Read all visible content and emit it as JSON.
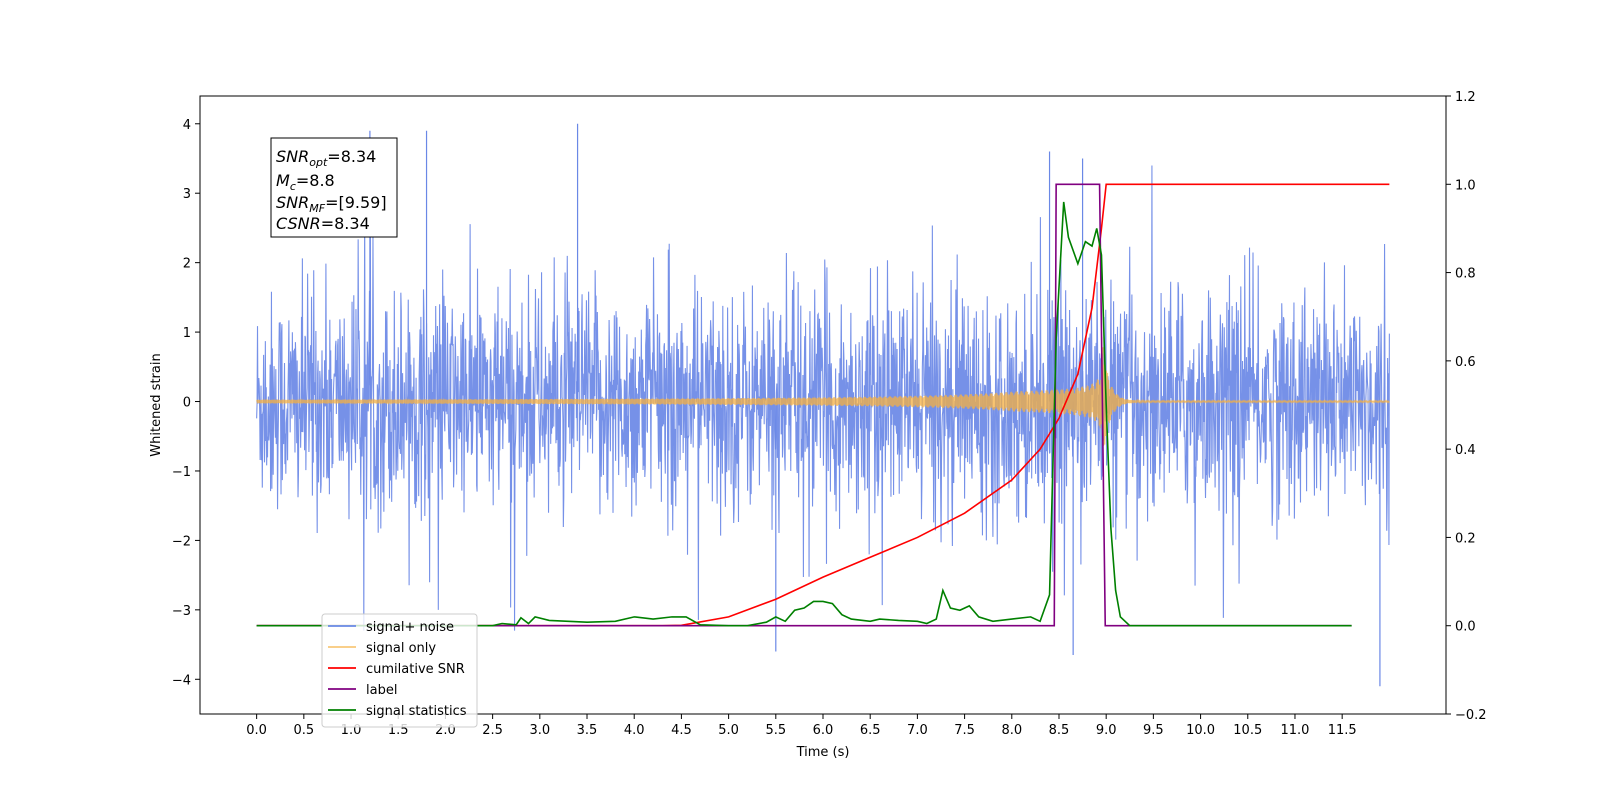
{
  "chart_data": {
    "type": "line",
    "xlabel": "Time (s)",
    "ylabel": "Whitened strain",
    "xlim": [
      -0.6,
      12.6
    ],
    "ylim": [
      -4.5,
      4.4
    ],
    "y2lim": [
      -0.2,
      1.2
    ],
    "x_ticks": [
      "0.0",
      "0.5",
      "1.0",
      "1.5",
      "2.0",
      "2.5",
      "3.0",
      "3.5",
      "4.0",
      "4.5",
      "5.0",
      "5.5",
      "6.0",
      "6.5",
      "7.0",
      "7.5",
      "8.0",
      "8.5",
      "9.0",
      "9.5",
      "10.0",
      "10.5",
      "11.0",
      "11.5"
    ],
    "y_ticks": [
      "4",
      "3",
      "2",
      "1",
      "0",
      "−1",
      "−2",
      "−3",
      "−4"
    ],
    "y2_ticks": [
      "1.2",
      "1.0",
      "0.8",
      "0.6",
      "0.4",
      "0.2",
      "0.0",
      "−0.2"
    ],
    "grid": false,
    "legend_position": "lower-left",
    "annotation": {
      "snr_opt": "=8.34",
      "mc": "=8.8",
      "snr_mf": "=[9.59]",
      "csnr": "=8.34"
    },
    "series": [
      {
        "name": "signal+ noise",
        "color": "#6a88e6",
        "axis": "left",
        "style": "noise",
        "x_range": [
          0.0,
          12.0
        ],
        "amplitude": 1.3,
        "peaks": [
          [
            1.2,
            3.9
          ],
          [
            1.8,
            3.9
          ],
          [
            3.4,
            4.0
          ],
          [
            8.4,
            3.6
          ],
          [
            8.75,
            3.5
          ],
          [
            8.65,
            -3.65
          ],
          [
            11.9,
            -4.1
          ],
          [
            5.5,
            -3.6
          ]
        ]
      },
      {
        "name": "signal only",
        "color": "#f5b041",
        "axis": "left",
        "style": "chirp",
        "x_range": [
          0.0,
          12.0
        ],
        "peak_time": 8.95,
        "peak_amplitude": 1.0
      },
      {
        "name": "cumilative SNR",
        "color": "#ff0000",
        "axis": "right",
        "points": [
          [
            0.0,
            0.0
          ],
          [
            4.3,
            0.0
          ],
          [
            4.5,
            0.001
          ],
          [
            5.0,
            0.02
          ],
          [
            5.5,
            0.06
          ],
          [
            6.0,
            0.11
          ],
          [
            6.5,
            0.155
          ],
          [
            7.0,
            0.2
          ],
          [
            7.5,
            0.255
          ],
          [
            8.0,
            0.33
          ],
          [
            8.3,
            0.4
          ],
          [
            8.5,
            0.47
          ],
          [
            8.7,
            0.57
          ],
          [
            8.85,
            0.72
          ],
          [
            8.95,
            0.9
          ],
          [
            9.0,
            1.0
          ],
          [
            12.0,
            1.0
          ]
        ]
      },
      {
        "name": "label",
        "color": "#800080",
        "axis": "right",
        "points": [
          [
            0.0,
            0.0
          ],
          [
            8.45,
            0.0
          ],
          [
            8.47,
            1.0
          ],
          [
            8.93,
            1.0
          ],
          [
            8.99,
            0.0
          ],
          [
            11.6,
            0.0
          ]
        ]
      },
      {
        "name": "signal statistics",
        "color": "#008000",
        "axis": "right",
        "points": [
          [
            0.0,
            0.0
          ],
          [
            2.5,
            0.0
          ],
          [
            2.6,
            0.005
          ],
          [
            2.75,
            0.002
          ],
          [
            2.8,
            0.018
          ],
          [
            2.88,
            0.005
          ],
          [
            2.95,
            0.02
          ],
          [
            3.1,
            0.012
          ],
          [
            3.3,
            0.01
          ],
          [
            3.5,
            0.008
          ],
          [
            3.8,
            0.01
          ],
          [
            4.0,
            0.02
          ],
          [
            4.2,
            0.015
          ],
          [
            4.4,
            0.02
          ],
          [
            4.55,
            0.02
          ],
          [
            4.7,
            0.002
          ],
          [
            5.0,
            0.0
          ],
          [
            5.2,
            0.0
          ],
          [
            5.4,
            0.008
          ],
          [
            5.5,
            0.02
          ],
          [
            5.6,
            0.01
          ],
          [
            5.7,
            0.035
          ],
          [
            5.8,
            0.04
          ],
          [
            5.9,
            0.055
          ],
          [
            6.0,
            0.055
          ],
          [
            6.1,
            0.05
          ],
          [
            6.2,
            0.025
          ],
          [
            6.3,
            0.015
          ],
          [
            6.5,
            0.01
          ],
          [
            6.6,
            0.015
          ],
          [
            6.8,
            0.012
          ],
          [
            7.0,
            0.01
          ],
          [
            7.1,
            0.005
          ],
          [
            7.2,
            0.015
          ],
          [
            7.27,
            0.08
          ],
          [
            7.35,
            0.04
          ],
          [
            7.45,
            0.035
          ],
          [
            7.55,
            0.045
          ],
          [
            7.65,
            0.02
          ],
          [
            7.8,
            0.01
          ],
          [
            8.0,
            0.015
          ],
          [
            8.2,
            0.02
          ],
          [
            8.3,
            0.01
          ],
          [
            8.4,
            0.07
          ],
          [
            8.47,
            0.65
          ],
          [
            8.55,
            0.96
          ],
          [
            8.6,
            0.88
          ],
          [
            8.7,
            0.82
          ],
          [
            8.78,
            0.87
          ],
          [
            8.85,
            0.86
          ],
          [
            8.9,
            0.9
          ],
          [
            8.95,
            0.84
          ],
          [
            9.0,
            0.5
          ],
          [
            9.05,
            0.22
          ],
          [
            9.1,
            0.08
          ],
          [
            9.15,
            0.02
          ],
          [
            9.25,
            0.0
          ],
          [
            11.6,
            0.0
          ]
        ]
      }
    ]
  }
}
